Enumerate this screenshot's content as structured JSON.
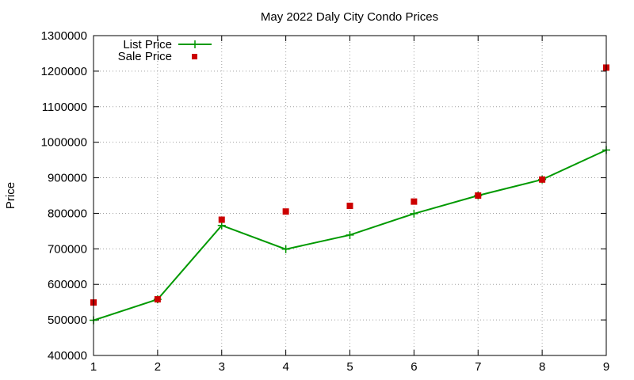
{
  "chart_data": {
    "type": "line",
    "title": "May 2022 Daly City Condo Prices",
    "xlabel": "",
    "ylabel": "Price",
    "x": [
      1,
      2,
      3,
      4,
      5,
      6,
      7,
      8,
      9
    ],
    "xlim": [
      1,
      9
    ],
    "ylim": [
      400000,
      1300000
    ],
    "xticks": [
      1,
      2,
      3,
      4,
      5,
      6,
      7,
      8,
      9
    ],
    "yticks": [
      400000,
      500000,
      600000,
      700000,
      800000,
      900000,
      1000000,
      1100000,
      1200000,
      1300000
    ],
    "grid": true,
    "legend_position": "top-left",
    "series": [
      {
        "name": "List Price",
        "style": "line+cross",
        "color": "#009900",
        "values": [
          499000,
          558000,
          766000,
          699000,
          739000,
          799000,
          850000,
          895000,
          978000
        ]
      },
      {
        "name": "Sale Price",
        "style": "square-points",
        "color": "#cc0000",
        "values": [
          549000,
          558000,
          782000,
          805000,
          821000,
          833000,
          850000,
          895000,
          1210000
        ]
      }
    ]
  }
}
